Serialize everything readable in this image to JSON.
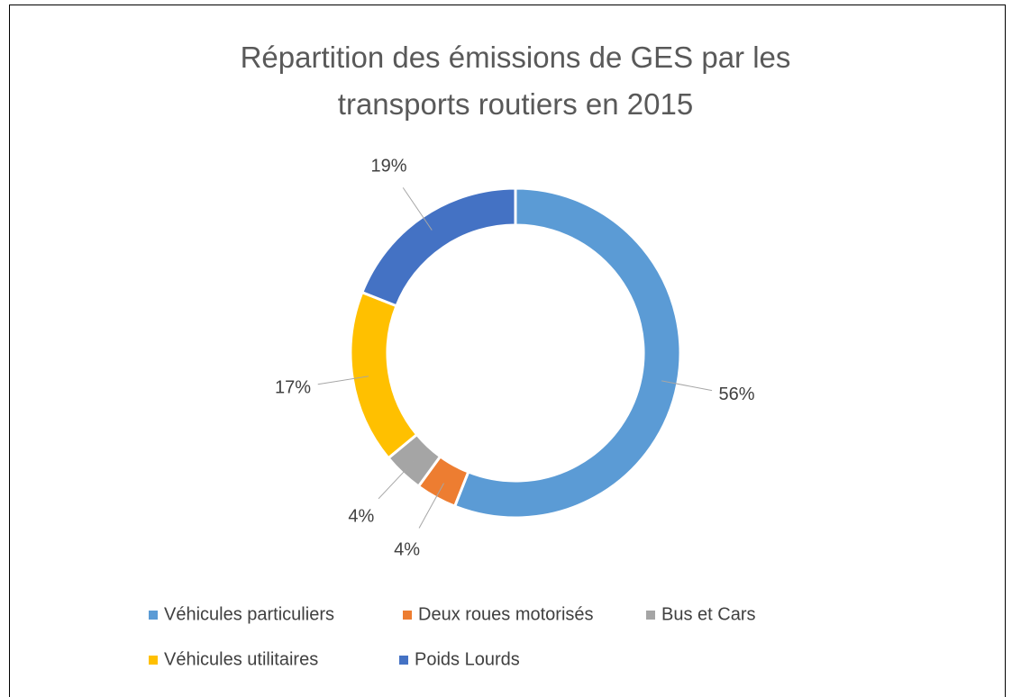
{
  "chart_data": {
    "type": "donut",
    "title": "Répartition des émissions de GES par les transports routiers en 2015",
    "categories": [
      "Véhicules particuliers",
      "Deux roues motorisés",
      "Bus et Cars",
      "Véhicules utilitaires",
      "Poids Lourds"
    ],
    "values": [
      56,
      4,
      4,
      17,
      19
    ],
    "value_labels": [
      "56%",
      "4%",
      "4%",
      "17%",
      "19%"
    ],
    "colors": [
      "#5b9bd5",
      "#ed7d31",
      "#a5a5a5",
      "#ffc000",
      "#4472c4"
    ],
    "legend": "bottom"
  }
}
